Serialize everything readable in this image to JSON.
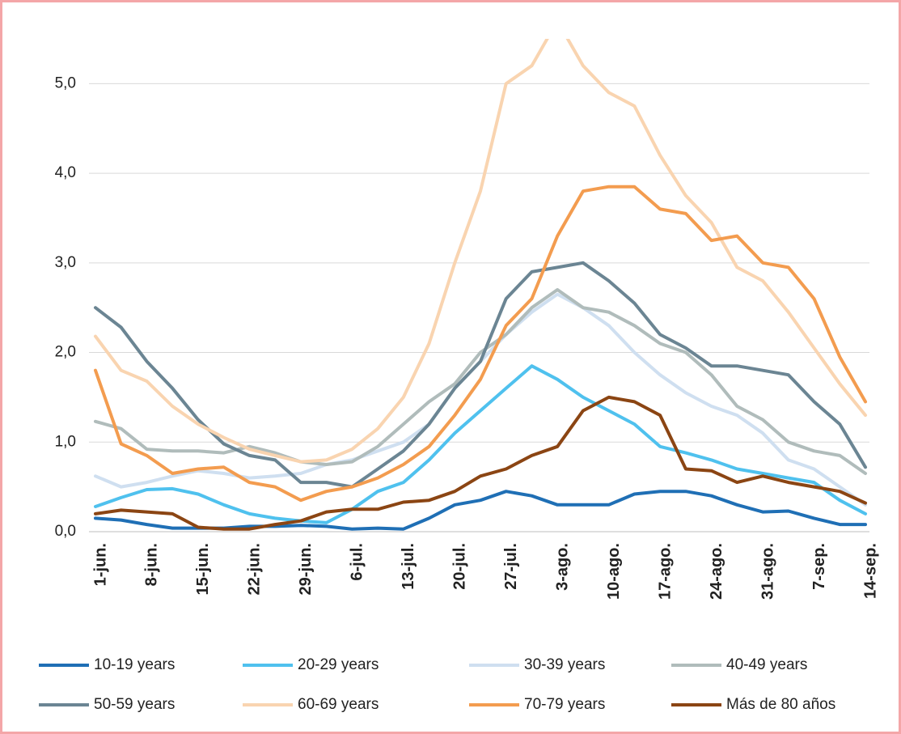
{
  "chart_data": {
    "type": "line",
    "categories": [
      "1-jun.",
      null,
      "8-jun.",
      null,
      "15-jun.",
      null,
      "22-jun.",
      null,
      "29-jun.",
      null,
      "6-jul.",
      null,
      "13-jul.",
      null,
      "20-jul.",
      null,
      "27-jul.",
      null,
      "3-ago.",
      null,
      "10-ago.",
      null,
      "17-ago.",
      null,
      "24-ago.",
      null,
      "31-ago.",
      null,
      "7-sep.",
      null,
      "14-sep."
    ],
    "ylim": [
      0,
      5.5
    ],
    "yticks": [
      {
        "value": 0,
        "label": "0,0"
      },
      {
        "value": 1,
        "label": "1,0"
      },
      {
        "value": 2,
        "label": "2,0"
      },
      {
        "value": 3,
        "label": "3,0"
      },
      {
        "value": 4,
        "label": "4,0"
      },
      {
        "value": 5,
        "label": "5,0"
      }
    ],
    "grid": true,
    "legend": "bottom",
    "series": [
      {
        "name": "10-19 years",
        "color": "#1f6fb5",
        "values": [
          0.15,
          0.13,
          0.08,
          0.04,
          0.04,
          0.04,
          0.06,
          0.06,
          0.07,
          0.06,
          0.03,
          0.04,
          0.03,
          0.15,
          0.3,
          0.35,
          0.45,
          0.4,
          0.3,
          0.3,
          0.3,
          0.42,
          0.45,
          0.45,
          0.4,
          0.3,
          0.22,
          0.23,
          0.15,
          0.08,
          0.08
        ]
      },
      {
        "name": "20-29 years",
        "color": "#4fc1ee",
        "values": [
          0.28,
          0.38,
          0.47,
          0.48,
          0.42,
          0.3,
          0.2,
          0.15,
          0.12,
          0.1,
          0.25,
          0.45,
          0.55,
          0.8,
          1.1,
          1.35,
          1.6,
          1.85,
          1.7,
          1.5,
          1.35,
          1.2,
          0.95,
          0.88,
          0.8,
          0.7,
          0.65,
          0.6,
          0.55,
          0.35,
          0.2
        ]
      },
      {
        "name": "30-39 years",
        "color": "#cfdff0",
        "values": [
          0.62,
          0.5,
          0.55,
          0.62,
          0.68,
          0.65,
          0.6,
          0.62,
          0.65,
          0.75,
          0.8,
          0.9,
          1.0,
          1.2,
          1.6,
          1.9,
          2.2,
          2.45,
          2.65,
          2.5,
          2.3,
          2.0,
          1.75,
          1.55,
          1.4,
          1.3,
          1.1,
          0.8,
          0.7,
          0.5,
          0.3
        ]
      },
      {
        "name": "40-49 years",
        "color": "#b0bcbb",
        "values": [
          1.23,
          1.15,
          0.92,
          0.9,
          0.9,
          0.88,
          0.95,
          0.88,
          0.78,
          0.75,
          0.78,
          0.95,
          1.2,
          1.45,
          1.65,
          2.0,
          2.2,
          2.5,
          2.7,
          2.5,
          2.45,
          2.3,
          2.1,
          2.0,
          1.75,
          1.4,
          1.25,
          1.0,
          0.9,
          0.85,
          0.65
        ]
      },
      {
        "name": "50-59 years",
        "color": "#6b8593",
        "values": [
          2.5,
          2.28,
          1.9,
          1.6,
          1.25,
          0.98,
          0.85,
          0.8,
          0.55,
          0.55,
          0.5,
          0.7,
          0.9,
          1.2,
          1.6,
          1.9,
          2.6,
          2.9,
          2.95,
          3.0,
          2.8,
          2.55,
          2.2,
          2.05,
          1.85,
          1.85,
          1.8,
          1.75,
          1.45,
          1.2,
          0.72
        ]
      },
      {
        "name": "60-69 years",
        "color": "#f9d4b0",
        "values": [
          2.18,
          1.8,
          1.68,
          1.4,
          1.2,
          1.05,
          0.92,
          0.85,
          0.78,
          0.8,
          0.92,
          1.15,
          1.5,
          2.1,
          3.0,
          3.8,
          5.0,
          5.2,
          5.7,
          5.2,
          4.9,
          4.75,
          4.2,
          3.75,
          3.45,
          2.95,
          2.8,
          2.45,
          2.05,
          1.65,
          1.3
        ]
      },
      {
        "name": "70-79 years",
        "color": "#f39c4f",
        "values": [
          1.8,
          0.98,
          0.85,
          0.65,
          0.7,
          0.72,
          0.55,
          0.5,
          0.35,
          0.45,
          0.5,
          0.6,
          0.75,
          0.95,
          1.3,
          1.7,
          2.3,
          2.6,
          3.3,
          3.8,
          3.85,
          3.85,
          3.6,
          3.55,
          3.25,
          3.3,
          3.0,
          2.95,
          2.6,
          1.95,
          1.45
        ]
      },
      {
        "name": "Más de 80 años",
        "color": "#8b4513",
        "values": [
          0.2,
          0.24,
          0.22,
          0.2,
          0.05,
          0.03,
          0.03,
          0.08,
          0.12,
          0.22,
          0.25,
          0.25,
          0.33,
          0.35,
          0.45,
          0.62,
          0.7,
          0.85,
          0.95,
          1.35,
          1.5,
          1.45,
          1.3,
          0.7,
          0.68,
          0.55,
          0.62,
          0.55,
          0.5,
          0.45,
          0.32
        ]
      }
    ]
  }
}
